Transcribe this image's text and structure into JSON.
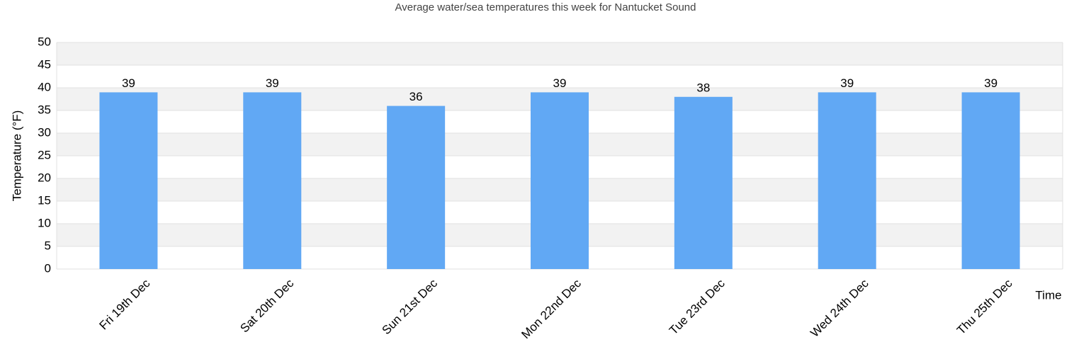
{
  "chart_data": {
    "type": "bar",
    "title": "Average water/sea temperatures this week for Nantucket Sound",
    "y_label": "Temperature (°F)",
    "x_label": "Time",
    "categories": [
      "Fri 19th Dec",
      "Sat 20th Dec",
      "Sun 21st Dec",
      "Mon 22nd Dec",
      "Tue 23rd Dec",
      "Wed 24th Dec",
      "Thu 25th Dec"
    ],
    "values": [
      39,
      39,
      36,
      39,
      38,
      39,
      39
    ],
    "color": "#61a8f4",
    "ylim": [
      0,
      50
    ],
    "yticks": [
      0,
      5,
      10,
      15,
      20,
      25,
      30,
      35,
      40,
      45,
      50
    ],
    "grid": true
  }
}
